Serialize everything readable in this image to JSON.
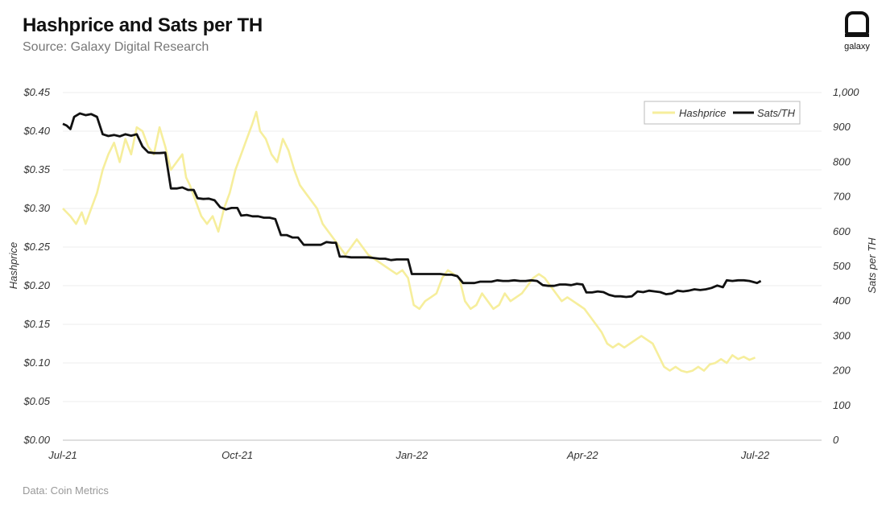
{
  "header": {
    "title": "Hashprice and Sats per TH",
    "subtitle": "Source: Galaxy Digital Research"
  },
  "footer": {
    "source": "Data: Coin Metrics"
  },
  "logo": {
    "text": "galaxy",
    "icon": "galaxy-logo-icon"
  },
  "chart_data": {
    "type": "line",
    "xlabel": "",
    "ylabel_left": "Hashprice",
    "ylabel_right": "Sats per TH",
    "x_ticks": [
      "Jul-21",
      "Oct-21",
      "Jan-22",
      "Apr-22",
      "Jul-22"
    ],
    "x_tick_pos": [
      0,
      92,
      184,
      274,
      365
    ],
    "x_range": [
      0,
      400
    ],
    "ylim_left": [
      0,
      0.45
    ],
    "ylim_right": [
      0,
      1000
    ],
    "y_ticks_left": [
      "$0.00",
      "$0.05",
      "$0.10",
      "$0.15",
      "$0.20",
      "$0.25",
      "$0.30",
      "$0.35",
      "$0.40",
      "$0.45"
    ],
    "y_ticks_right": [
      "0",
      "100",
      "200",
      "300",
      "400",
      "500",
      "600",
      "700",
      "800",
      "900",
      "1,000"
    ],
    "grid": "horizontal",
    "legend": "top-right",
    "series": [
      {
        "name": "Hashprice",
        "axis": "left",
        "color": "#f6ee9c",
        "points": [
          [
            0,
            0.3
          ],
          [
            4,
            0.29
          ],
          [
            7,
            0.28
          ],
          [
            10,
            0.295
          ],
          [
            12,
            0.28
          ],
          [
            15,
            0.3
          ],
          [
            18,
            0.32
          ],
          [
            21,
            0.35
          ],
          [
            24,
            0.37
          ],
          [
            27,
            0.385
          ],
          [
            30,
            0.36
          ],
          [
            33,
            0.39
          ],
          [
            36,
            0.37
          ],
          [
            39,
            0.405
          ],
          [
            42,
            0.4
          ],
          [
            45,
            0.38
          ],
          [
            48,
            0.37
          ],
          [
            51,
            0.405
          ],
          [
            54,
            0.38
          ],
          [
            57,
            0.35
          ],
          [
            60,
            0.36
          ],
          [
            63,
            0.37
          ],
          [
            65,
            0.34
          ],
          [
            67,
            0.33
          ],
          [
            70,
            0.31
          ],
          [
            73,
            0.29
          ],
          [
            76,
            0.28
          ],
          [
            79,
            0.29
          ],
          [
            82,
            0.27
          ],
          [
            85,
            0.3
          ],
          [
            88,
            0.32
          ],
          [
            91,
            0.35
          ],
          [
            94,
            0.37
          ],
          [
            97,
            0.39
          ],
          [
            100,
            0.41
          ],
          [
            102,
            0.425
          ],
          [
            104,
            0.4
          ],
          [
            107,
            0.39
          ],
          [
            110,
            0.37
          ],
          [
            113,
            0.36
          ],
          [
            116,
            0.39
          ],
          [
            119,
            0.375
          ],
          [
            122,
            0.35
          ],
          [
            125,
            0.33
          ],
          [
            128,
            0.32
          ],
          [
            131,
            0.31
          ],
          [
            134,
            0.3
          ],
          [
            137,
            0.28
          ],
          [
            140,
            0.27
          ],
          [
            143,
            0.26
          ],
          [
            146,
            0.25
          ],
          [
            149,
            0.24
          ],
          [
            152,
            0.25
          ],
          [
            155,
            0.26
          ],
          [
            158,
            0.25
          ],
          [
            161,
            0.24
          ],
          [
            164,
            0.235
          ],
          [
            167,
            0.23
          ],
          [
            170,
            0.225
          ],
          [
            173,
            0.22
          ],
          [
            176,
            0.215
          ],
          [
            179,
            0.22
          ],
          [
            182,
            0.21
          ],
          [
            185,
            0.175
          ],
          [
            188,
            0.17
          ],
          [
            191,
            0.18
          ],
          [
            194,
            0.185
          ],
          [
            197,
            0.19
          ],
          [
            200,
            0.21
          ],
          [
            203,
            0.22
          ],
          [
            206,
            0.215
          ],
          [
            209,
            0.21
          ],
          [
            212,
            0.18
          ],
          [
            215,
            0.17
          ],
          [
            218,
            0.175
          ],
          [
            221,
            0.19
          ],
          [
            224,
            0.18
          ],
          [
            227,
            0.17
          ],
          [
            230,
            0.175
          ],
          [
            233,
            0.19
          ],
          [
            236,
            0.18
          ],
          [
            239,
            0.185
          ],
          [
            242,
            0.19
          ],
          [
            245,
            0.2
          ],
          [
            248,
            0.21
          ],
          [
            251,
            0.215
          ],
          [
            254,
            0.21
          ],
          [
            257,
            0.2
          ],
          [
            260,
            0.19
          ],
          [
            263,
            0.18
          ],
          [
            266,
            0.185
          ],
          [
            269,
            0.18
          ],
          [
            272,
            0.175
          ],
          [
            275,
            0.17
          ],
          [
            278,
            0.16
          ],
          [
            281,
            0.15
          ],
          [
            284,
            0.14
          ],
          [
            287,
            0.125
          ],
          [
            290,
            0.12
          ],
          [
            293,
            0.125
          ],
          [
            296,
            0.12
          ],
          [
            299,
            0.125
          ],
          [
            302,
            0.13
          ],
          [
            305,
            0.135
          ],
          [
            308,
            0.13
          ],
          [
            311,
            0.125
          ],
          [
            314,
            0.11
          ],
          [
            317,
            0.095
          ],
          [
            320,
            0.09
          ],
          [
            323,
            0.095
          ],
          [
            326,
            0.09
          ],
          [
            329,
            0.088
          ],
          [
            332,
            0.09
          ],
          [
            335,
            0.095
          ],
          [
            338,
            0.09
          ],
          [
            341,
            0.098
          ],
          [
            344,
            0.1
          ],
          [
            347,
            0.105
          ],
          [
            350,
            0.1
          ],
          [
            353,
            0.11
          ],
          [
            356,
            0.105
          ],
          [
            359,
            0.108
          ],
          [
            362,
            0.104
          ],
          [
            365,
            0.107
          ]
        ]
      },
      {
        "name": "Sats/TH",
        "axis": "right",
        "color": "#111111",
        "points": [
          [
            0,
            910
          ],
          [
            2,
            905
          ],
          [
            4,
            895
          ],
          [
            6,
            930
          ],
          [
            9,
            940
          ],
          [
            12,
            935
          ],
          [
            15,
            938
          ],
          [
            18,
            930
          ],
          [
            21,
            880
          ],
          [
            24,
            875
          ],
          [
            27,
            878
          ],
          [
            30,
            874
          ],
          [
            33,
            880
          ],
          [
            36,
            876
          ],
          [
            39,
            880
          ],
          [
            42,
            845
          ],
          [
            45,
            828
          ],
          [
            48,
            826
          ],
          [
            51,
            826
          ],
          [
            54,
            827
          ],
          [
            57,
            724
          ],
          [
            60,
            724
          ],
          [
            63,
            727
          ],
          [
            66,
            720
          ],
          [
            69,
            720
          ],
          [
            71,
            696
          ],
          [
            74,
            694
          ],
          [
            77,
            695
          ],
          [
            80,
            690
          ],
          [
            83,
            670
          ],
          [
            86,
            664
          ],
          [
            89,
            668
          ],
          [
            92,
            668
          ],
          [
            94,
            646
          ],
          [
            97,
            648
          ],
          [
            100,
            644
          ],
          [
            103,
            644
          ],
          [
            106,
            640
          ],
          [
            109,
            640
          ],
          [
            112,
            636
          ],
          [
            115,
            590
          ],
          [
            118,
            590
          ],
          [
            121,
            583
          ],
          [
            124,
            583
          ],
          [
            127,
            562
          ],
          [
            130,
            562
          ],
          [
            133,
            562
          ],
          [
            136,
            562
          ],
          [
            139,
            570
          ],
          [
            142,
            568
          ],
          [
            144,
            568
          ],
          [
            146,
            528
          ],
          [
            149,
            528
          ],
          [
            152,
            526
          ],
          [
            155,
            526
          ],
          [
            158,
            526
          ],
          [
            161,
            526
          ],
          [
            164,
            524
          ],
          [
            167,
            522
          ],
          [
            170,
            522
          ],
          [
            173,
            518
          ],
          [
            176,
            520
          ],
          [
            179,
            520
          ],
          [
            182,
            520
          ],
          [
            184,
            478
          ],
          [
            187,
            478
          ],
          [
            190,
            478
          ],
          [
            193,
            478
          ],
          [
            196,
            478
          ],
          [
            199,
            478
          ],
          [
            202,
            476
          ],
          [
            205,
            476
          ],
          [
            208,
            472
          ],
          [
            211,
            452
          ],
          [
            214,
            452
          ],
          [
            217,
            452
          ],
          [
            220,
            456
          ],
          [
            223,
            456
          ],
          [
            226,
            456
          ],
          [
            229,
            460
          ],
          [
            232,
            458
          ],
          [
            235,
            458
          ],
          [
            238,
            460
          ],
          [
            241,
            458
          ],
          [
            244,
            458
          ],
          [
            247,
            460
          ],
          [
            250,
            458
          ],
          [
            253,
            446
          ],
          [
            256,
            444
          ],
          [
            259,
            444
          ],
          [
            262,
            448
          ],
          [
            265,
            448
          ],
          [
            268,
            446
          ],
          [
            271,
            450
          ],
          [
            274,
            448
          ],
          [
            276,
            425
          ],
          [
            279,
            425
          ],
          [
            282,
            428
          ],
          [
            285,
            426
          ],
          [
            288,
            418
          ],
          [
            291,
            414
          ],
          [
            294,
            414
          ],
          [
            297,
            412
          ],
          [
            300,
            414
          ],
          [
            303,
            428
          ],
          [
            306,
            426
          ],
          [
            309,
            430
          ],
          [
            312,
            428
          ],
          [
            315,
            426
          ],
          [
            318,
            420
          ],
          [
            321,
            422
          ],
          [
            324,
            430
          ],
          [
            327,
            428
          ],
          [
            330,
            430
          ],
          [
            333,
            434
          ],
          [
            336,
            432
          ],
          [
            339,
            434
          ],
          [
            342,
            438
          ],
          [
            345,
            445
          ],
          [
            348,
            440
          ],
          [
            350,
            460
          ],
          [
            353,
            458
          ],
          [
            356,
            460
          ],
          [
            359,
            460
          ],
          [
            362,
            458
          ],
          [
            364,
            455
          ],
          [
            366,
            452
          ],
          [
            368,
            458
          ]
        ]
      }
    ]
  }
}
